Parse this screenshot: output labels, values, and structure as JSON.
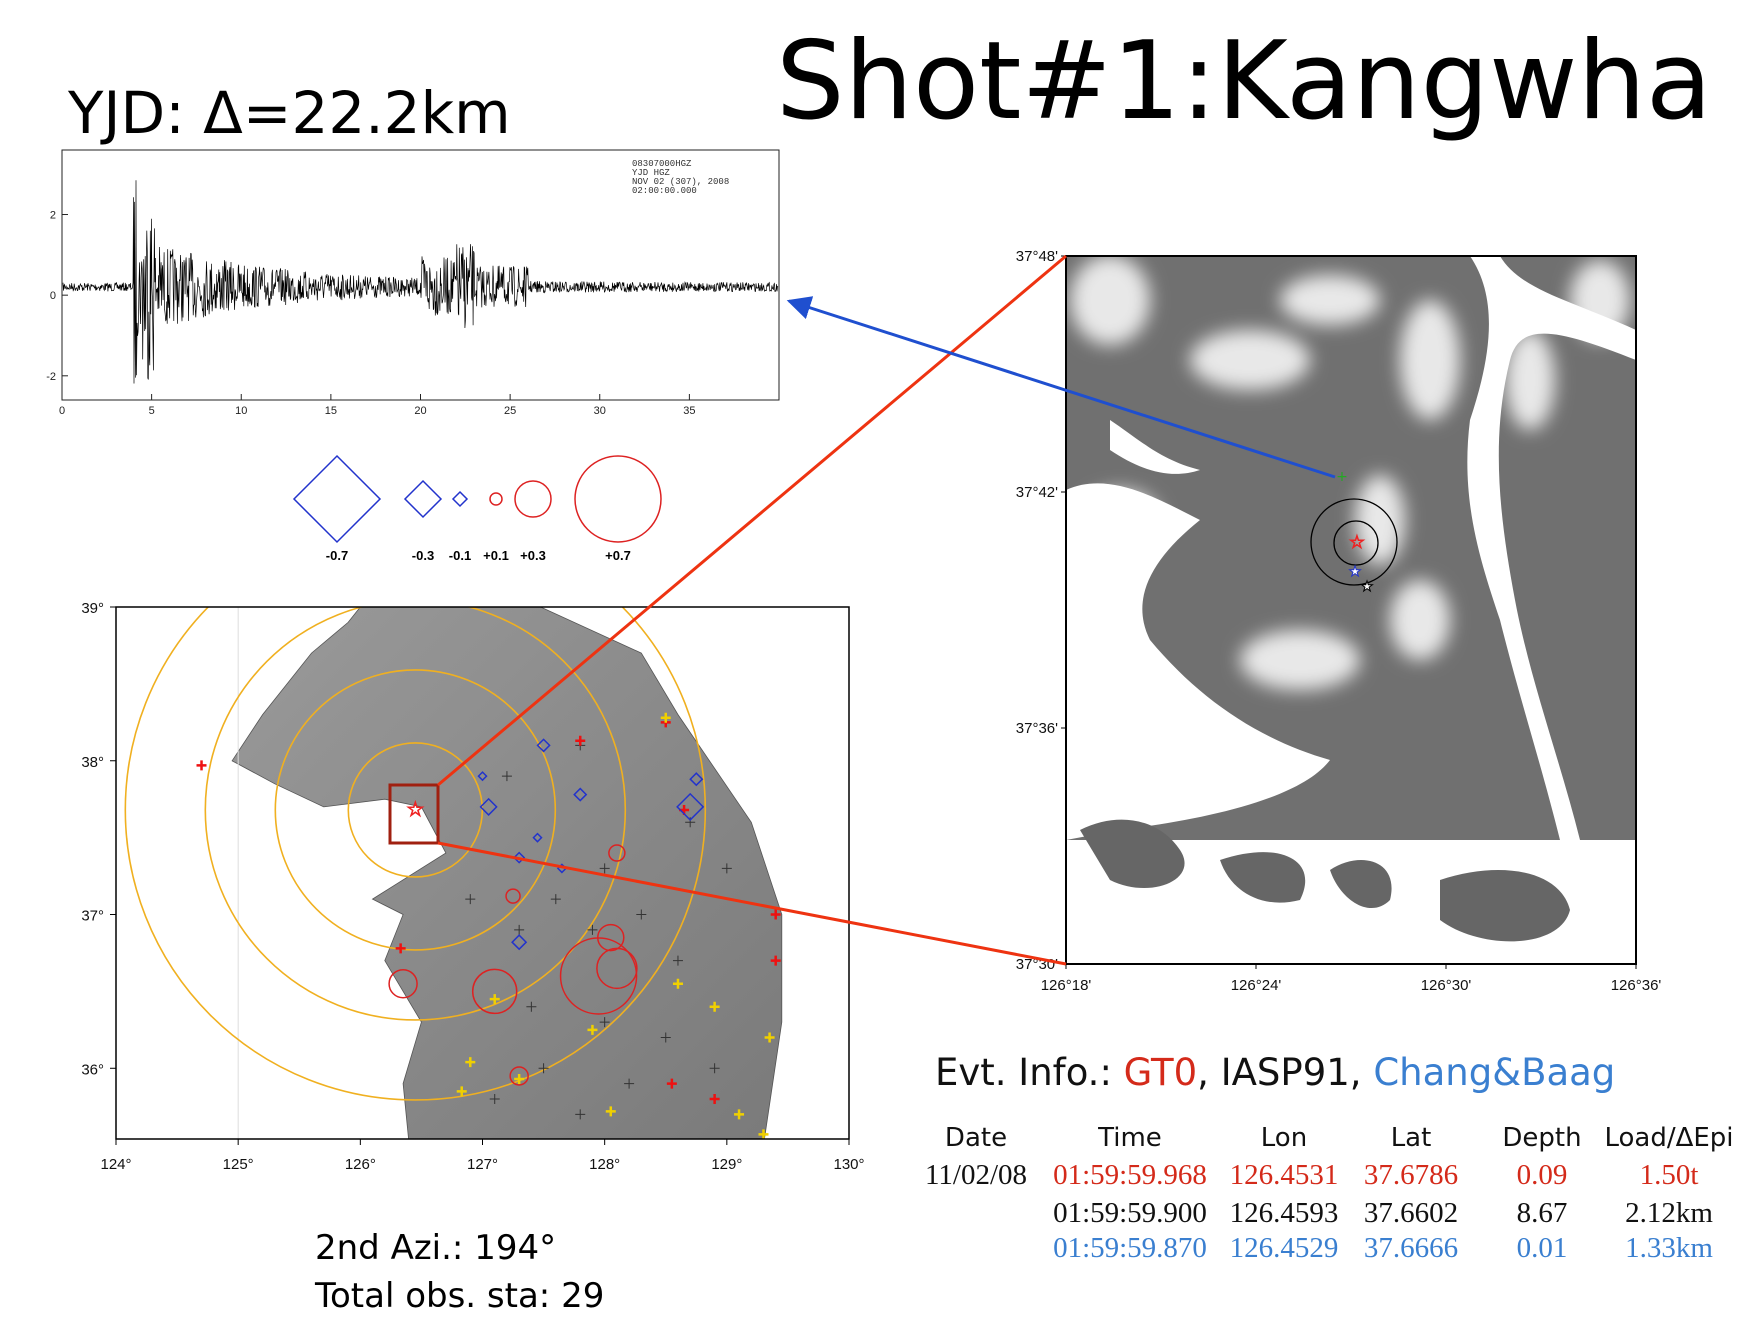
{
  "title": "Shot#1:Kangwha",
  "station_label": "YJD: Δ=22.2km",
  "seismogram": {
    "header": [
      "08307000HGZ",
      "YJD    HGZ",
      "NOV 02 (307), 2008",
      "02:00:00.000"
    ],
    "xlim": [
      0,
      40
    ],
    "ylim": [
      -2.6,
      3.6
    ],
    "xticks": [
      0,
      5,
      10,
      15,
      20,
      25,
      30,
      35
    ],
    "yticks": [
      -2,
      0,
      2
    ]
  },
  "legend": {
    "labels": [
      "-0.7",
      "-0.3",
      "-0.1",
      "+0.1",
      "+0.3",
      "+0.7"
    ]
  },
  "main_map": {
    "xlim": [
      124,
      130
    ],
    "ylim": [
      35.54,
      39
    ],
    "xticks": [
      {
        "value": 124,
        "label": "124°"
      },
      {
        "value": 125,
        "label": "125°"
      },
      {
        "value": 126,
        "label": "126°"
      },
      {
        "value": 127,
        "label": "127°"
      },
      {
        "value": 128,
        "label": "128°"
      },
      {
        "value": 129,
        "label": "129°"
      },
      {
        "value": 130,
        "label": "130°"
      }
    ],
    "yticks": [
      {
        "value": 39,
        "label": "39°"
      },
      {
        "value": 38,
        "label": "38°"
      },
      {
        "value": 37,
        "label": "37°"
      },
      {
        "value": 36,
        "label": "36°"
      }
    ]
  },
  "inset_map": {
    "xlim": [
      126.3,
      126.6
    ],
    "ylim": [
      37.5,
      37.8
    ],
    "xticks": [
      {
        "value": 126.3,
        "label": "126°18'"
      },
      {
        "value": 126.4,
        "label": "126°24'"
      },
      {
        "value": 126.5,
        "label": "126°30'"
      },
      {
        "value": 126.6,
        "label": "126°36'"
      }
    ],
    "yticks": [
      {
        "value": 37.8,
        "label": "37°48'"
      },
      {
        "value": 37.7,
        "label": "37°42'"
      },
      {
        "value": 37.6,
        "label": "37°36'"
      },
      {
        "value": 37.5,
        "label": "37°30'"
      }
    ]
  },
  "event_info": {
    "parts": [
      "Evt. Info.: ",
      "GT0",
      ", IASP91, ",
      "Chang&Baag"
    ]
  },
  "table": {
    "headers": [
      "Date",
      "Time",
      "Lon",
      "Lat",
      "Depth",
      "Load/ΔEpi"
    ],
    "date": "11/02/08",
    "rows": [
      [
        "01:59:59.968",
        "126.4531",
        "37.6786",
        "0.09",
        "1.50t"
      ],
      [
        "01:59:59.900",
        "126.4593",
        "37.6602",
        "8.67",
        "2.12km"
      ],
      [
        "01:59:59.870",
        "126.4529",
        "37.6666",
        "0.01",
        "1.33km"
      ]
    ]
  },
  "notes": [
    "2nd Azi.: 194°",
    "Total obs. sta: 29"
  ]
}
